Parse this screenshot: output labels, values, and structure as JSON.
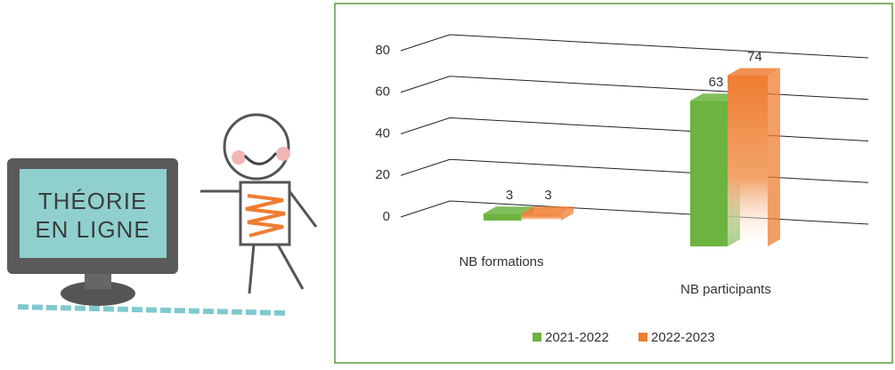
{
  "illustration": {
    "screen_lines": [
      "THÉORIE",
      "EN LIGNE"
    ]
  },
  "chart_data": {
    "type": "bar3d",
    "categories": [
      "NB formations",
      "NB participants"
    ],
    "series": [
      {
        "name": "2021-2022",
        "color": "#6cb33f",
        "values": [
          3,
          63
        ]
      },
      {
        "name": "2022-2023",
        "color": "#ee7d31",
        "values": [
          3,
          74
        ]
      }
    ],
    "ylim": [
      0,
      80
    ],
    "yticks": [
      0,
      20,
      40,
      60,
      80
    ],
    "grid": true,
    "legend": "bottom"
  }
}
